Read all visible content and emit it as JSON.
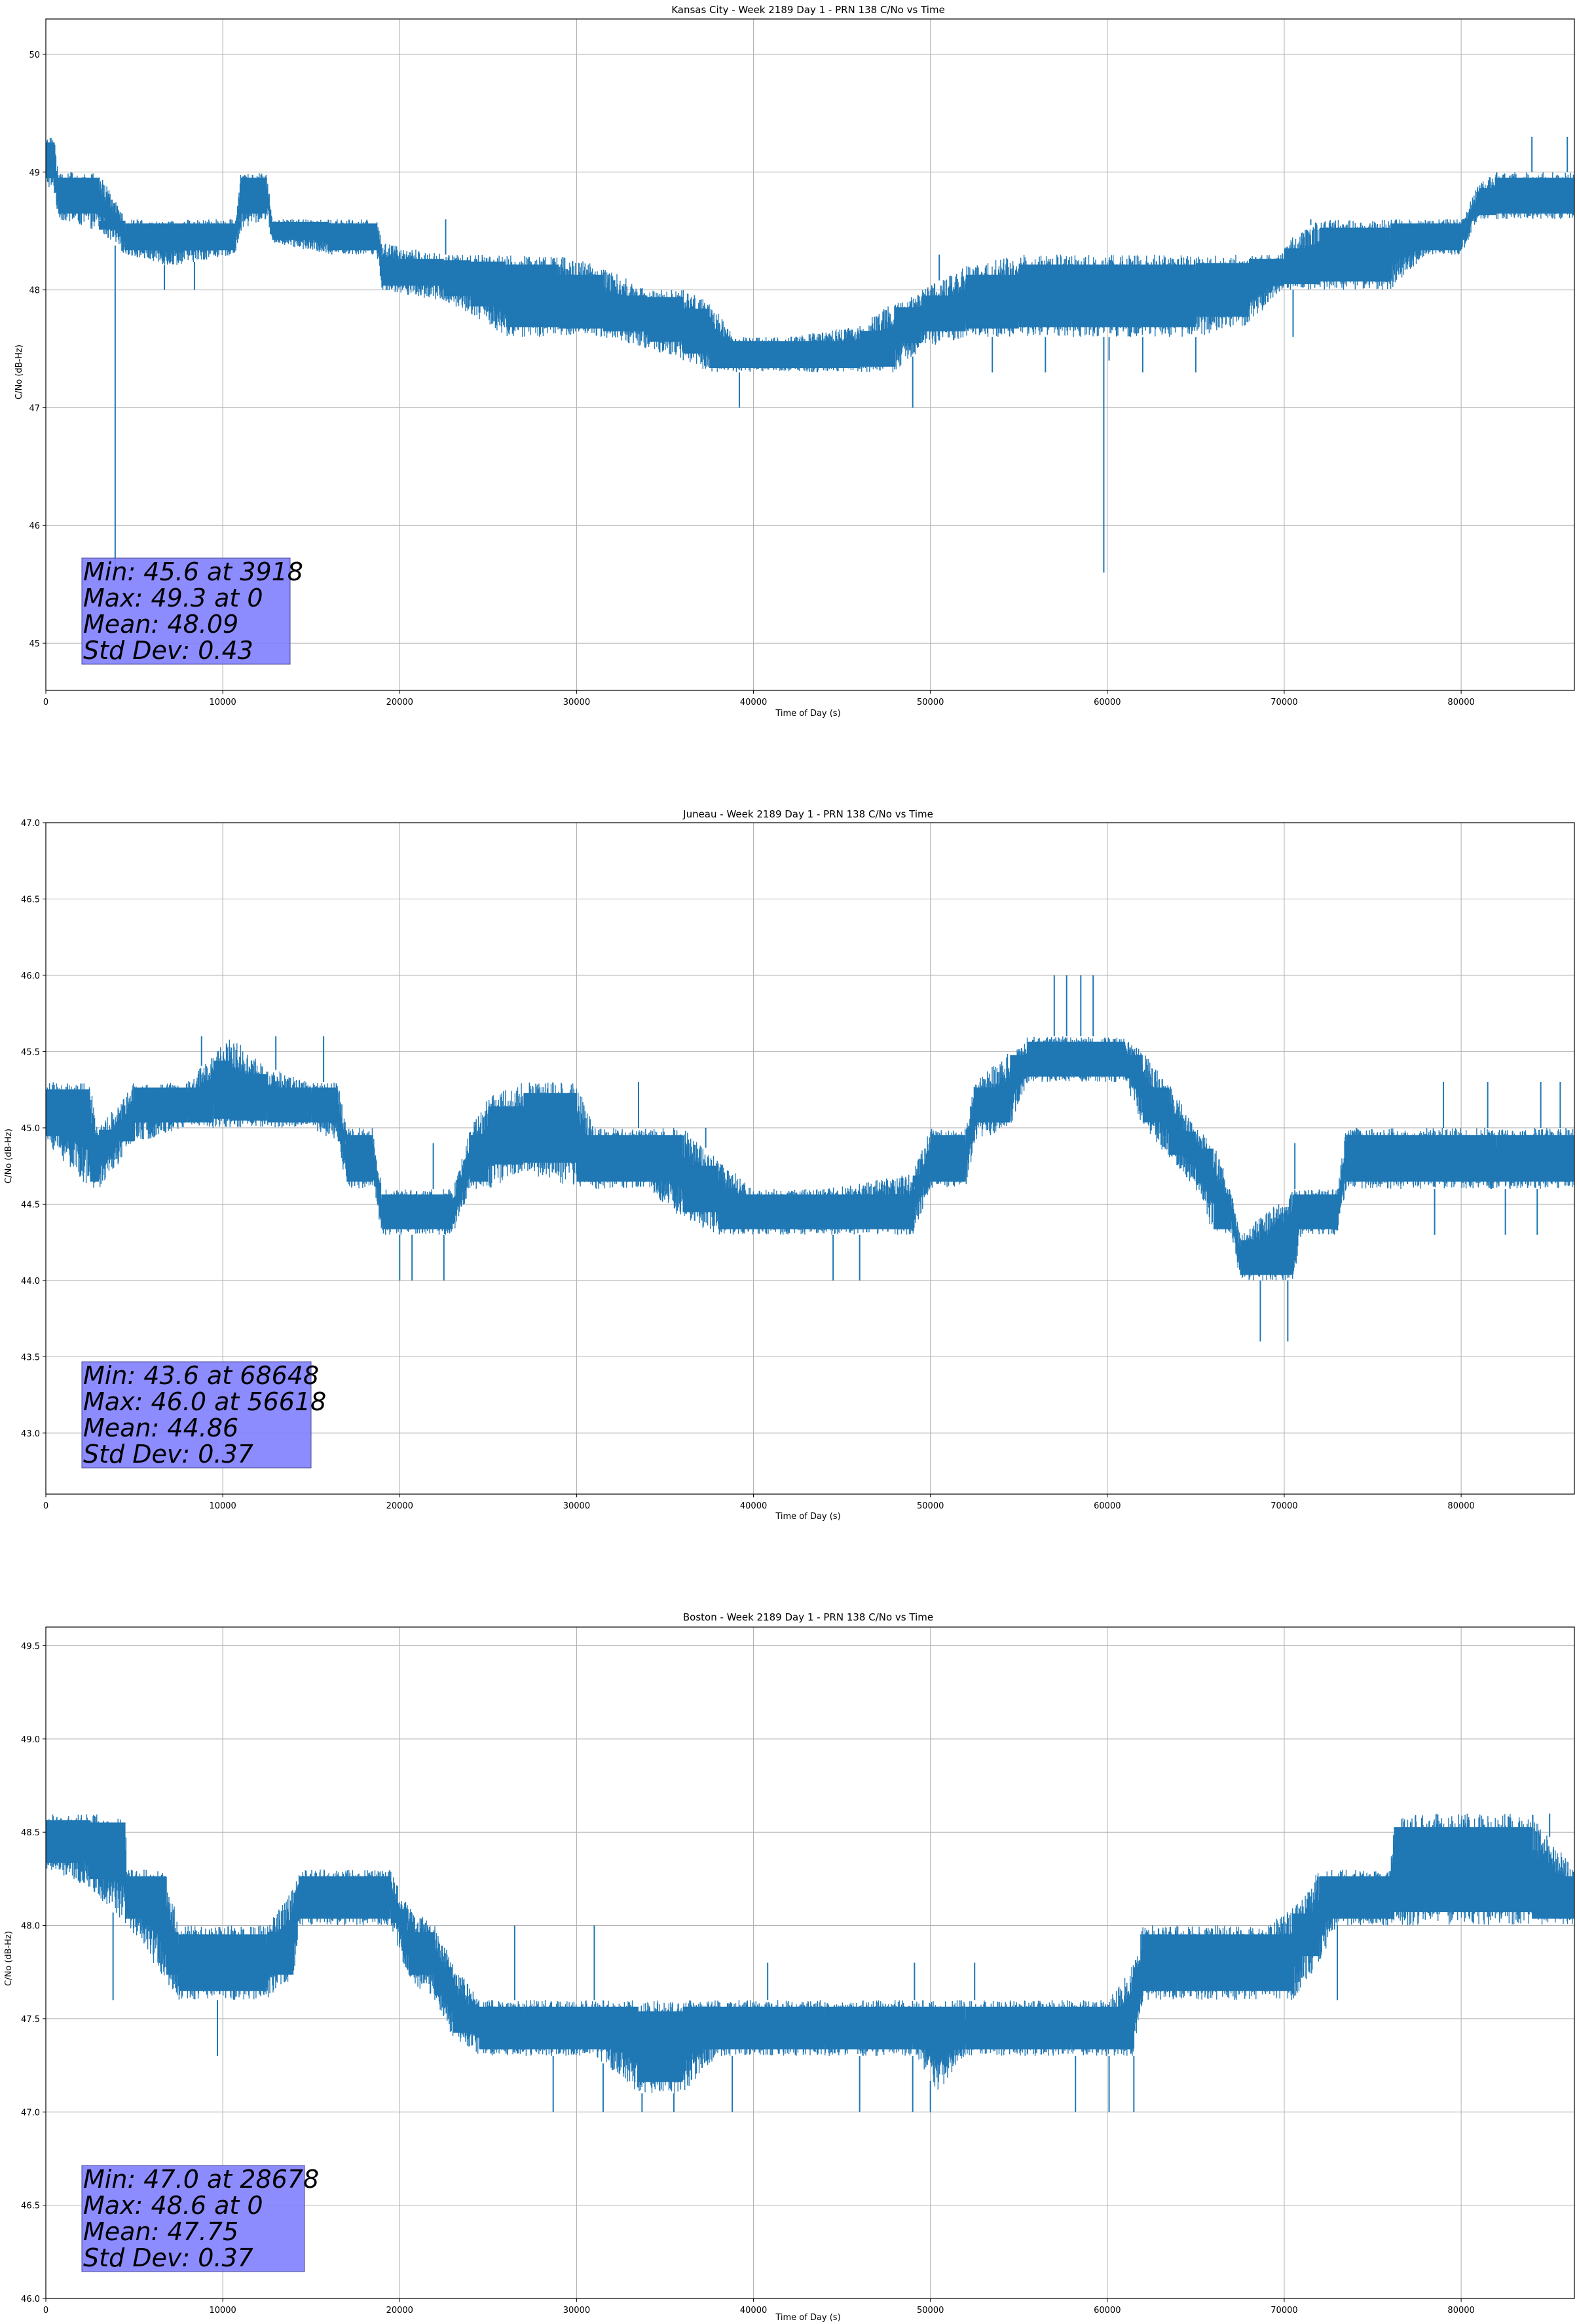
{
  "colors": {
    "series": "#1f77b4",
    "grid": "#b0b0b0",
    "stats_box": "#7f7fff"
  },
  "chart_data": [
    {
      "type": "line",
      "title": "Kansas City - Week 2189 Day 1 - PRN 138 C/No vs Time",
      "xlabel": "Time of Day (s)",
      "ylabel": "C/No (dB-Hz)",
      "xlim": [
        0,
        86400
      ],
      "ylim": [
        44.6,
        50.3
      ],
      "xticks": [
        0,
        10000,
        20000,
        30000,
        40000,
        50000,
        60000,
        70000,
        80000
      ],
      "xtick_labels": [
        "0",
        "10000",
        "20000",
        "30000",
        "40000",
        "50000",
        "60000",
        "70000",
        "80000"
      ],
      "yticks": [
        45,
        46,
        47,
        48,
        49,
        50
      ],
      "ytick_labels": [
        "45",
        "46",
        "47",
        "48",
        "49",
        "50"
      ],
      "grid": true,
      "band": [
        [
          0,
          48.9,
          49.3
        ],
        [
          500,
          48.8,
          49.3
        ],
        [
          700,
          48.6,
          49.0
        ],
        [
          3000,
          48.5,
          49.0
        ],
        [
          4500,
          48.3,
          48.6
        ],
        [
          7000,
          48.2,
          48.6
        ],
        [
          10700,
          48.3,
          48.6
        ],
        [
          11000,
          48.5,
          49.0
        ],
        [
          12500,
          48.6,
          49.0
        ],
        [
          12800,
          48.4,
          48.6
        ],
        [
          16000,
          48.3,
          48.6
        ],
        [
          18700,
          48.3,
          48.6
        ],
        [
          19000,
          48.0,
          48.4
        ],
        [
          22500,
          47.9,
          48.3
        ],
        [
          24000,
          47.8,
          48.3
        ],
        [
          26000,
          47.6,
          48.3
        ],
        [
          29000,
          47.6,
          48.3
        ],
        [
          31500,
          47.6,
          48.2
        ],
        [
          34000,
          47.5,
          48.0
        ],
        [
          36000,
          47.4,
          48.0
        ],
        [
          37500,
          47.3,
          47.9
        ],
        [
          39000,
          47.3,
          47.6
        ],
        [
          42000,
          47.3,
          47.6
        ],
        [
          46000,
          47.3,
          47.7
        ],
        [
          48000,
          47.3,
          47.9
        ],
        [
          49500,
          47.5,
          48.0
        ],
        [
          52000,
          47.6,
          48.2
        ],
        [
          55000,
          47.6,
          48.3
        ],
        [
          58000,
          47.6,
          48.3
        ],
        [
          62000,
          47.6,
          48.3
        ],
        [
          65000,
          47.6,
          48.3
        ],
        [
          68000,
          47.7,
          48.3
        ],
        [
          69800,
          48.0,
          48.3
        ],
        [
          70000,
          48.0,
          48.4
        ],
        [
          72000,
          48.0,
          48.6
        ],
        [
          76000,
          48.0,
          48.6
        ],
        [
          78000,
          48.3,
          48.6
        ],
        [
          80000,
          48.3,
          48.6
        ],
        [
          81000,
          48.6,
          48.9
        ],
        [
          82000,
          48.6,
          49.0
        ],
        [
          84000,
          48.6,
          49.0
        ],
        [
          86400,
          48.6,
          49.0
        ]
      ],
      "spikes": [
        [
          3918,
          45.6
        ],
        [
          59800,
          45.6
        ],
        [
          60100,
          47.4
        ],
        [
          39200,
          47.0
        ],
        [
          49000,
          47.0
        ],
        [
          53500,
          47.3
        ],
        [
          56500,
          47.3
        ],
        [
          62000,
          47.3
        ],
        [
          65000,
          47.3
        ],
        [
          84000,
          49.3
        ],
        [
          86000,
          49.3
        ],
        [
          6700,
          48.0
        ],
        [
          8400,
          48.0
        ],
        [
          22600,
          48.6
        ],
        [
          50500,
          48.3
        ],
        [
          57500,
          48.3
        ],
        [
          71500,
          48.6
        ],
        [
          76500,
          48.6
        ],
        [
          70500,
          47.6
        ]
      ],
      "stats": [
        "Min: 45.6 at 3918",
        "Max: 49.3 at 0",
        "Mean: 48.09",
        "Std Dev: 0.43"
      ]
    },
    {
      "type": "line",
      "title": "Juneau - Week 2189 Day 1 - PRN 138 C/No vs Time",
      "xlabel": "Time of Day (s)",
      "ylabel": "C/No (dB-Hz)",
      "xlim": [
        0,
        86400
      ],
      "ylim": [
        42.6,
        47.0
      ],
      "xticks": [
        0,
        10000,
        20000,
        30000,
        40000,
        50000,
        60000,
        70000,
        80000
      ],
      "xtick_labels": [
        "0",
        "10000",
        "20000",
        "30000",
        "40000",
        "50000",
        "60000",
        "70000",
        "80000"
      ],
      "yticks": [
        43.0,
        43.5,
        44.0,
        44.5,
        45.0,
        45.5,
        46.0,
        46.5,
        47.0
      ],
      "ytick_labels": [
        "43.0",
        "43.5",
        "44.0",
        "44.5",
        "45.0",
        "45.5",
        "46.0",
        "46.5",
        "47.0"
      ],
      "grid": true,
      "band": [
        [
          0,
          44.9,
          45.3
        ],
        [
          2500,
          44.6,
          45.3
        ],
        [
          3000,
          44.6,
          45.0
        ],
        [
          5000,
          44.9,
          45.3
        ],
        [
          8000,
          45.0,
          45.3
        ],
        [
          9500,
          45.0,
          45.5
        ],
        [
          10500,
          45.0,
          45.6
        ],
        [
          12500,
          45.0,
          45.4
        ],
        [
          15000,
          45.0,
          45.3
        ],
        [
          16500,
          44.9,
          45.3
        ],
        [
          17000,
          44.6,
          45.0
        ],
        [
          18500,
          44.6,
          45.0
        ],
        [
          19000,
          44.3,
          44.6
        ],
        [
          21000,
          44.3,
          44.6
        ],
        [
          23000,
          44.3,
          44.6
        ],
        [
          24000,
          44.6,
          45.0
        ],
        [
          25000,
          44.6,
          45.2
        ],
        [
          27000,
          44.7,
          45.3
        ],
        [
          30000,
          44.6,
          45.3
        ],
        [
          31000,
          44.6,
          45.0
        ],
        [
          34000,
          44.6,
          45.0
        ],
        [
          36000,
          44.4,
          45.0
        ],
        [
          38000,
          44.3,
          44.8
        ],
        [
          40000,
          44.3,
          44.6
        ],
        [
          44000,
          44.3,
          44.6
        ],
        [
          49000,
          44.3,
          44.7
        ],
        [
          50000,
          44.6,
          45.0
        ],
        [
          52000,
          44.6,
          45.0
        ],
        [
          52500,
          44.9,
          45.3
        ],
        [
          54500,
          45.0,
          45.5
        ],
        [
          55500,
          45.3,
          45.6
        ],
        [
          58000,
          45.3,
          45.6
        ],
        [
          61000,
          45.3,
          45.6
        ],
        [
          62000,
          45.0,
          45.5
        ],
        [
          63500,
          44.8,
          45.3
        ],
        [
          65000,
          44.6,
          45.0
        ],
        [
          66000,
          44.3,
          44.9
        ],
        [
          67000,
          44.3,
          44.6
        ],
        [
          67500,
          44.0,
          44.3
        ],
        [
          70500,
          44.0,
          44.6
        ],
        [
          71000,
          44.3,
          44.6
        ],
        [
          73000,
          44.3,
          44.6
        ],
        [
          73500,
          44.6,
          45.0
        ],
        [
          78000,
          44.6,
          45.0
        ],
        [
          82000,
          44.6,
          45.0
        ],
        [
          86400,
          44.6,
          45.0
        ]
      ],
      "spikes": [
        [
          68648,
          43.6
        ],
        [
          70200,
          43.6
        ],
        [
          57000,
          46.0
        ],
        [
          57700,
          46.0
        ],
        [
          58500,
          46.0
        ],
        [
          59200,
          46.0
        ],
        [
          20000,
          44.0
        ],
        [
          20700,
          44.0
        ],
        [
          22500,
          44.0
        ],
        [
          44500,
          44.0
        ],
        [
          46000,
          44.0
        ],
        [
          8800,
          45.6
        ],
        [
          13000,
          45.6
        ],
        [
          15700,
          45.6
        ],
        [
          21900,
          44.9
        ],
        [
          79000,
          45.3
        ],
        [
          81500,
          45.3
        ],
        [
          84500,
          45.3
        ],
        [
          85600,
          45.3
        ],
        [
          78500,
          44.3
        ],
        [
          82500,
          44.3
        ],
        [
          84300,
          44.3
        ],
        [
          70600,
          44.9
        ],
        [
          33500,
          45.3
        ],
        [
          37300,
          45.0
        ]
      ],
      "stats": [
        "Min: 43.6 at 68648",
        "Max: 46.0 at 56618",
        "Mean: 44.86",
        "Std Dev: 0.37"
      ]
    },
    {
      "type": "line",
      "title": "Boston - Week 2189 Day 1 - PRN 138 C/No vs Time",
      "xlabel": "Time of Day (s)",
      "ylabel": "C/No (dB-Hz)",
      "xlim": [
        0,
        86400
      ],
      "ylim": [
        46.0,
        49.6
      ],
      "xticks": [
        0,
        10000,
        20000,
        30000,
        40000,
        50000,
        60000,
        70000,
        80000
      ],
      "xtick_labels": [
        "0",
        "10000",
        "20000",
        "30000",
        "40000",
        "50000",
        "60000",
        "70000",
        "80000"
      ],
      "yticks": [
        46.0,
        46.5,
        47.0,
        47.5,
        48.0,
        48.5,
        49.0,
        49.5
      ],
      "ytick_labels": [
        "46.0",
        "46.5",
        "47.0",
        "47.5",
        "48.0",
        "48.5",
        "49.0",
        "49.5"
      ],
      "grid": true,
      "band": [
        [
          0,
          48.3,
          48.6
        ],
        [
          2500,
          48.2,
          48.6
        ],
        [
          4500,
          48.0,
          48.6
        ],
        [
          4600,
          48.0,
          48.3
        ],
        [
          6800,
          47.7,
          48.3
        ],
        [
          7500,
          47.6,
          48.0
        ],
        [
          10000,
          47.6,
          48.0
        ],
        [
          12500,
          47.6,
          48.0
        ],
        [
          14000,
          47.7,
          48.2
        ],
        [
          14300,
          48.0,
          48.3
        ],
        [
          17000,
          48.0,
          48.3
        ],
        [
          19500,
          48.0,
          48.3
        ],
        [
          20500,
          47.7,
          48.1
        ],
        [
          22000,
          47.6,
          48.0
        ],
        [
          23000,
          47.4,
          47.8
        ],
        [
          24500,
          47.3,
          47.6
        ],
        [
          27000,
          47.3,
          47.6
        ],
        [
          31000,
          47.3,
          47.6
        ],
        [
          33500,
          47.1,
          47.6
        ],
        [
          36000,
          47.1,
          47.6
        ],
        [
          38000,
          47.3,
          47.6
        ],
        [
          44000,
          47.3,
          47.6
        ],
        [
          46000,
          47.3,
          47.6
        ],
        [
          49000,
          47.3,
          47.6
        ],
        [
          50500,
          47.1,
          47.6
        ],
        [
          52000,
          47.3,
          47.6
        ],
        [
          58000,
          47.3,
          47.6
        ],
        [
          60000,
          47.3,
          47.6
        ],
        [
          61500,
          47.3,
          47.8
        ],
        [
          62000,
          47.6,
          48.0
        ],
        [
          64000,
          47.6,
          48.0
        ],
        [
          67000,
          47.6,
          48.0
        ],
        [
          69000,
          47.6,
          48.0
        ],
        [
          70500,
          47.6,
          48.1
        ],
        [
          72000,
          47.8,
          48.3
        ],
        [
          73000,
          48.0,
          48.3
        ],
        [
          75000,
          48.0,
          48.3
        ],
        [
          76000,
          48.0,
          48.3
        ],
        [
          76200,
          48.0,
          48.6
        ],
        [
          78000,
          48.0,
          48.6
        ],
        [
          80000,
          48.0,
          48.6
        ],
        [
          84000,
          48.0,
          48.6
        ],
        [
          86400,
          48.0,
          48.3
        ]
      ],
      "spikes": [
        [
          28678,
          47.0
        ],
        [
          31500,
          47.0
        ],
        [
          33700,
          47.0
        ],
        [
          35500,
          47.0
        ],
        [
          38800,
          47.0
        ],
        [
          46000,
          47.0
        ],
        [
          49000,
          47.0
        ],
        [
          50000,
          47.0
        ],
        [
          58200,
          47.0
        ],
        [
          60100,
          47.0
        ],
        [
          61500,
          47.0
        ],
        [
          9700,
          47.3
        ],
        [
          3800,
          47.6
        ],
        [
          78500,
          48.6
        ],
        [
          80500,
          48.6
        ],
        [
          82000,
          48.6
        ],
        [
          84000,
          48.6
        ],
        [
          85000,
          48.6
        ],
        [
          40800,
          47.8
        ],
        [
          49100,
          47.8
        ],
        [
          52500,
          47.8
        ],
        [
          73000,
          47.6
        ],
        [
          26500,
          48.0
        ],
        [
          31000,
          48.0
        ]
      ],
      "stats": [
        "Min: 47.0 at 28678",
        "Max: 48.6 at 0",
        "Mean: 47.75",
        "Std Dev: 0.37"
      ]
    }
  ]
}
